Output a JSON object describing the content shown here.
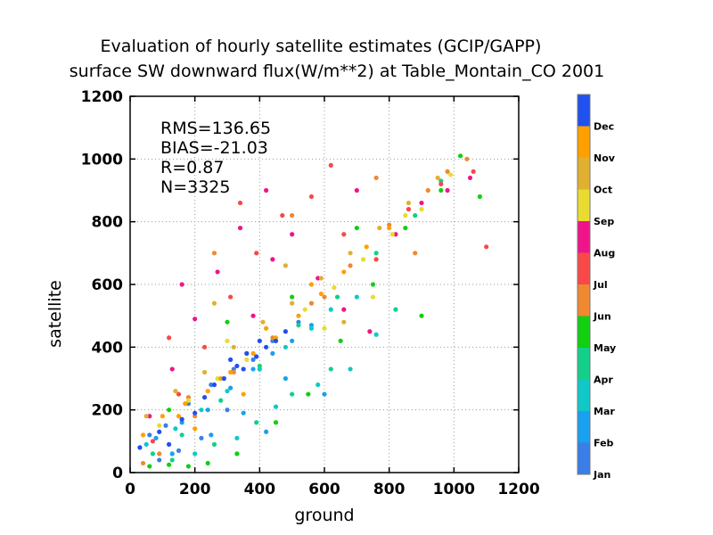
{
  "chart_data": {
    "type": "scatter",
    "title": "Evaluation of hourly satellite estimates (GCIP/GAPP)",
    "subtitle": "surface SW downward flux(W/m**2) at Table_Montain_CO 2001",
    "xlabel": "ground",
    "ylabel": "satellite",
    "xlim": [
      0,
      1200
    ],
    "ylim": [
      0,
      1200
    ],
    "xticks": [
      "0",
      "200",
      "400",
      "600",
      "800",
      "1000",
      "1200"
    ],
    "yticks": [
      "0",
      "200",
      "400",
      "600",
      "800",
      "1000",
      "1200"
    ],
    "grid": true,
    "stats": [
      "RMS=136.65",
      "BIAS=-21.03",
      "R=0.87",
      "N=3325"
    ],
    "colorbar": {
      "labels": [
        "Jan",
        "Feb",
        "Mar",
        "Apr",
        "May",
        "Jun",
        "Jul",
        "Aug",
        "Sep",
        "Oct",
        "Nov",
        "Dec"
      ],
      "colors": [
        "#3a7fe8",
        "#19a0f0",
        "#11c8c8",
        "#12d08a",
        "#10d010",
        "#f08830",
        "#f84848",
        "#f0148a",
        "#e8dc30",
        "#e0b030",
        "#ffa000",
        "#2050f0"
      ]
    },
    "series": [
      {
        "name": "Jan",
        "points": [
          [
            60,
            120
          ],
          [
            110,
            150
          ],
          [
            180,
            220
          ],
          [
            250,
            280
          ],
          [
            320,
            330
          ],
          [
            380,
            360
          ],
          [
            440,
            420
          ],
          [
            150,
            70
          ],
          [
            220,
            110
          ],
          [
            300,
            200
          ],
          [
            90,
            40
          ],
          [
            520,
            480
          ]
        ]
      },
      {
        "name": "Feb",
        "points": [
          [
            80,
            110
          ],
          [
            160,
            160
          ],
          [
            240,
            200
          ],
          [
            310,
            270
          ],
          [
            380,
            330
          ],
          [
            440,
            380
          ],
          [
            500,
            420
          ],
          [
            560,
            470
          ],
          [
            130,
            60
          ],
          [
            250,
            120
          ],
          [
            350,
            190
          ],
          [
            480,
            300
          ],
          [
            600,
            250
          ],
          [
            420,
            130
          ]
        ]
      },
      {
        "name": "Mar",
        "points": [
          [
            50,
            90
          ],
          [
            140,
            140
          ],
          [
            220,
            200
          ],
          [
            300,
            260
          ],
          [
            400,
            330
          ],
          [
            480,
            400
          ],
          [
            560,
            460
          ],
          [
            620,
            520
          ],
          [
            700,
            560
          ],
          [
            200,
            60
          ],
          [
            330,
            110
          ],
          [
            450,
            210
          ],
          [
            580,
            280
          ],
          [
            680,
            330
          ],
          [
            760,
            440
          ]
        ]
      },
      {
        "name": "Apr",
        "points": [
          [
            70,
            60
          ],
          [
            160,
            120
          ],
          [
            280,
            230
          ],
          [
            400,
            340
          ],
          [
            520,
            470
          ],
          [
            640,
            560
          ],
          [
            760,
            700
          ],
          [
            880,
            820
          ],
          [
            960,
            930
          ],
          [
            130,
            40
          ],
          [
            260,
            90
          ],
          [
            390,
            160
          ],
          [
            500,
            250
          ],
          [
            620,
            330
          ],
          [
            820,
            520
          ]
        ]
      },
      {
        "name": "May",
        "points": [
          [
            60,
            20
          ],
          [
            120,
            25
          ],
          [
            180,
            20
          ],
          [
            240,
            30
          ],
          [
            330,
            60
          ],
          [
            450,
            160
          ],
          [
            550,
            250
          ],
          [
            650,
            420
          ],
          [
            750,
            600
          ],
          [
            850,
            780
          ],
          [
            960,
            900
          ],
          [
            1020,
            1010
          ],
          [
            500,
            560
          ],
          [
            700,
            780
          ],
          [
            900,
            500
          ],
          [
            1080,
            880
          ],
          [
            120,
            200
          ],
          [
            300,
            480
          ]
        ]
      },
      {
        "name": "Jun",
        "points": [
          [
            40,
            30
          ],
          [
            90,
            60
          ],
          [
            200,
            180
          ],
          [
            320,
            320
          ],
          [
            440,
            430
          ],
          [
            560,
            540
          ],
          [
            680,
            660
          ],
          [
            800,
            790
          ],
          [
            920,
            900
          ],
          [
            1040,
            1000
          ],
          [
            180,
            240
          ],
          [
            360,
            380
          ],
          [
            600,
            560
          ],
          [
            980,
            960
          ],
          [
            260,
            700
          ],
          [
            500,
            820
          ],
          [
            760,
            940
          ],
          [
            880,
            700
          ]
        ]
      },
      {
        "name": "Jul",
        "points": [
          [
            70,
            100
          ],
          [
            150,
            250
          ],
          [
            230,
            400
          ],
          [
            310,
            560
          ],
          [
            390,
            700
          ],
          [
            470,
            820
          ],
          [
            560,
            880
          ],
          [
            660,
            760
          ],
          [
            760,
            680
          ],
          [
            860,
            840
          ],
          [
            960,
            920
          ],
          [
            1060,
            960
          ],
          [
            1100,
            720
          ],
          [
            120,
            430
          ],
          [
            340,
            860
          ],
          [
            620,
            980
          ]
        ]
      },
      {
        "name": "Aug",
        "points": [
          [
            60,
            180
          ],
          [
            130,
            330
          ],
          [
            200,
            490
          ],
          [
            270,
            640
          ],
          [
            340,
            780
          ],
          [
            420,
            900
          ],
          [
            500,
            760
          ],
          [
            580,
            620
          ],
          [
            660,
            520
          ],
          [
            740,
            450
          ],
          [
            820,
            760
          ],
          [
            900,
            860
          ],
          [
            980,
            900
          ],
          [
            1050,
            940
          ],
          [
            160,
            600
          ],
          [
            440,
            680
          ],
          [
            700,
            900
          ],
          [
            380,
            500
          ]
        ]
      },
      {
        "name": "Sep",
        "points": [
          [
            90,
            150
          ],
          [
            180,
            230
          ],
          [
            270,
            300
          ],
          [
            360,
            360
          ],
          [
            450,
            420
          ],
          [
            540,
            520
          ],
          [
            630,
            590
          ],
          [
            720,
            680
          ],
          [
            810,
            760
          ],
          [
            900,
            840
          ],
          [
            990,
            950
          ],
          [
            300,
            420
          ],
          [
            600,
            460
          ],
          [
            750,
            560
          ],
          [
            850,
            820
          ]
        ]
      },
      {
        "name": "Oct",
        "points": [
          [
            50,
            180
          ],
          [
            140,
            260
          ],
          [
            230,
            320
          ],
          [
            320,
            400
          ],
          [
            410,
            480
          ],
          [
            500,
            540
          ],
          [
            590,
            620
          ],
          [
            680,
            700
          ],
          [
            770,
            780
          ],
          [
            860,
            860
          ],
          [
            950,
            940
          ],
          [
            260,
            540
          ],
          [
            480,
            660
          ],
          [
            660,
            480
          ]
        ]
      },
      {
        "name": "Nov",
        "points": [
          [
            40,
            120
          ],
          [
            100,
            180
          ],
          [
            170,
            220
          ],
          [
            240,
            260
          ],
          [
            310,
            320
          ],
          [
            380,
            380
          ],
          [
            450,
            430
          ],
          [
            520,
            500
          ],
          [
            590,
            570
          ],
          [
            660,
            640
          ],
          [
            730,
            720
          ],
          [
            800,
            780
          ],
          [
            150,
            180
          ],
          [
            280,
            300
          ],
          [
            420,
            460
          ],
          [
            560,
            600
          ],
          [
            200,
            140
          ],
          [
            350,
            250
          ]
        ]
      },
      {
        "name": "Dec",
        "points": [
          [
            30,
            80
          ],
          [
            90,
            130
          ],
          [
            160,
            170
          ],
          [
            230,
            240
          ],
          [
            290,
            300
          ],
          [
            330,
            340
          ],
          [
            360,
            380
          ],
          [
            390,
            370
          ],
          [
            420,
            400
          ],
          [
            450,
            420
          ],
          [
            480,
            450
          ],
          [
            350,
            330
          ],
          [
            310,
            360
          ],
          [
            400,
            420
          ],
          [
            200,
            190
          ],
          [
            120,
            90
          ],
          [
            260,
            280
          ]
        ]
      }
    ]
  }
}
